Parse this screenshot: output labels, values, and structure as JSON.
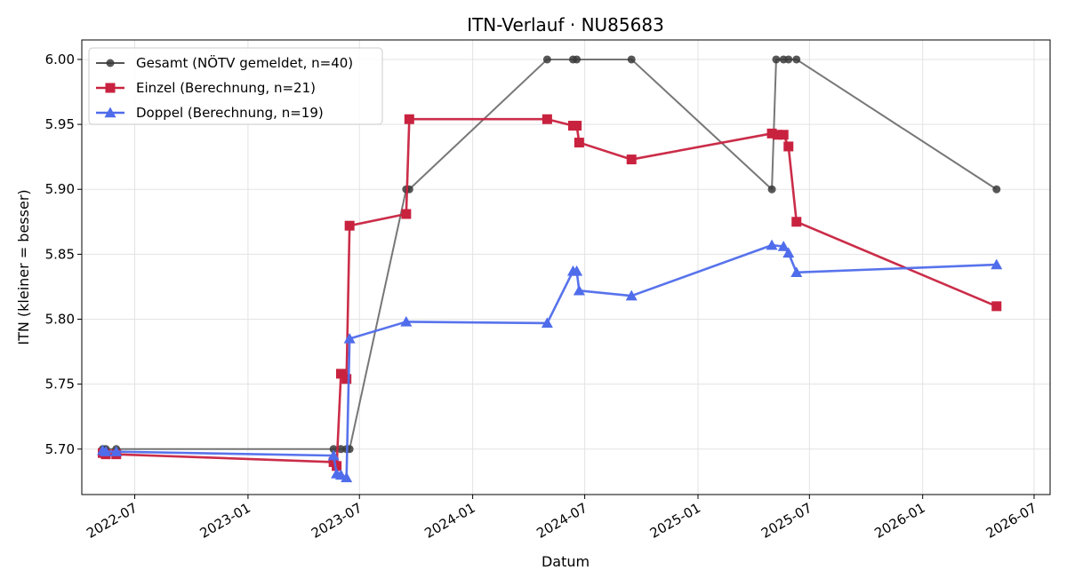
{
  "chart_data": {
    "type": "line",
    "title": "ITN-Verlauf · NU85683",
    "xlabel": "Datum",
    "ylabel": "ITN  (kleiner = besser)",
    "x_scale": "date",
    "xlim": [
      "2022-04-06",
      "2026-07-27"
    ],
    "ylim": [
      5.665,
      6.015
    ],
    "x_ticks": [
      "2022-07-01",
      "2023-01-01",
      "2023-07-01",
      "2024-01-01",
      "2024-07-01",
      "2025-01-01",
      "2025-07-01",
      "2026-01-01",
      "2026-07-01"
    ],
    "x_tick_labels": [
      "2022-07",
      "2023-01",
      "2023-07",
      "2024-01",
      "2024-07",
      "2025-01",
      "2025-07",
      "2026-01",
      "2026-07"
    ],
    "y_ticks": [
      5.7,
      5.75,
      5.8,
      5.85,
      5.9,
      5.95,
      6.0
    ],
    "y_tick_labels": [
      "5.70",
      "5.75",
      "5.80",
      "5.85",
      "5.90",
      "5.95",
      "6.00"
    ],
    "grid": true,
    "legend_position": "top-left",
    "series": [
      {
        "name": "Gesamt (NÖTV gemeldet, n=40)",
        "color": "#555555",
        "marker": "circle",
        "points": [
          [
            "2022-05-10",
            5.7
          ],
          [
            "2022-05-15",
            5.7
          ],
          [
            "2022-06-01",
            5.7
          ],
          [
            "2023-05-20",
            5.7
          ],
          [
            "2023-06-01",
            5.7
          ],
          [
            "2023-06-10",
            5.7
          ],
          [
            "2023-06-15",
            5.7
          ],
          [
            "2023-09-15",
            5.9
          ],
          [
            "2023-09-20",
            5.9
          ],
          [
            "2024-05-01",
            6.0
          ],
          [
            "2024-06-12",
            6.0
          ],
          [
            "2024-06-18",
            6.0
          ],
          [
            "2024-09-15",
            6.0
          ],
          [
            "2025-05-01",
            5.9
          ],
          [
            "2025-05-08",
            6.0
          ],
          [
            "2025-05-20",
            6.0
          ],
          [
            "2025-05-28",
            6.0
          ],
          [
            "2025-06-10",
            6.0
          ],
          [
            "2026-05-01",
            5.9
          ]
        ]
      },
      {
        "name": "Einzel (Berechnung, n=21)",
        "color": "#c8223f",
        "marker": "square",
        "points": [
          [
            "2022-05-10",
            5.697
          ],
          [
            "2022-05-15",
            5.696
          ],
          [
            "2022-06-01",
            5.696
          ],
          [
            "2023-05-20",
            5.69
          ],
          [
            "2023-05-25",
            5.687
          ],
          [
            "2023-06-01",
            5.758
          ],
          [
            "2023-06-10",
            5.754
          ],
          [
            "2023-06-15",
            5.872
          ],
          [
            "2023-09-15",
            5.881
          ],
          [
            "2023-09-20",
            5.954
          ],
          [
            "2024-05-01",
            5.954
          ],
          [
            "2024-06-12",
            5.949
          ],
          [
            "2024-06-18",
            5.949
          ],
          [
            "2024-06-22",
            5.936
          ],
          [
            "2024-09-15",
            5.923
          ],
          [
            "2025-05-01",
            5.943
          ],
          [
            "2025-05-10",
            5.942
          ],
          [
            "2025-05-20",
            5.942
          ],
          [
            "2025-05-28",
            5.933
          ],
          [
            "2025-06-10",
            5.875
          ],
          [
            "2026-05-01",
            5.81
          ]
        ]
      },
      {
        "name": "Doppel (Berechnung, n=19)",
        "color": "#4f6ceb",
        "marker": "triangle",
        "points": [
          [
            "2022-05-10",
            5.699
          ],
          [
            "2022-05-15",
            5.698
          ],
          [
            "2022-06-01",
            5.698
          ],
          [
            "2023-05-20",
            5.695
          ],
          [
            "2023-05-25",
            5.681
          ],
          [
            "2023-06-01",
            5.68
          ],
          [
            "2023-06-10",
            5.678
          ],
          [
            "2023-06-15",
            5.785
          ],
          [
            "2023-09-15",
            5.798
          ],
          [
            "2024-05-01",
            5.797
          ],
          [
            "2024-06-12",
            5.837
          ],
          [
            "2024-06-18",
            5.837
          ],
          [
            "2024-06-22",
            5.822
          ],
          [
            "2024-09-15",
            5.818
          ],
          [
            "2025-05-01",
            5.857
          ],
          [
            "2025-05-20",
            5.856
          ],
          [
            "2025-05-28",
            5.851
          ],
          [
            "2025-06-10",
            5.836
          ],
          [
            "2026-05-01",
            5.842
          ]
        ]
      }
    ]
  }
}
